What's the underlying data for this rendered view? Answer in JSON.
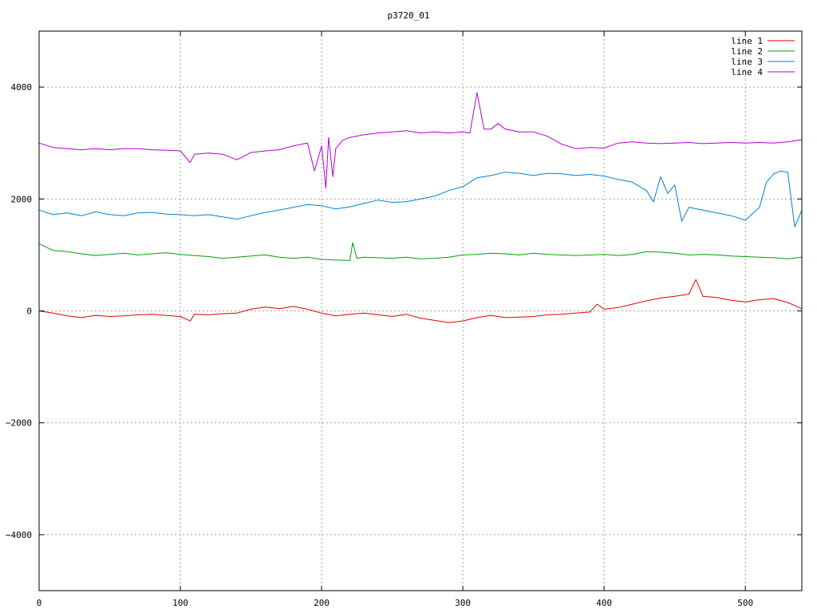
{
  "chart_data": {
    "type": "line",
    "title": "p3720_01",
    "xlabel": "",
    "ylabel": "",
    "xlim": [
      0,
      540
    ],
    "ylim": [
      -5000,
      5000
    ],
    "xticks": [
      0,
      100,
      200,
      300,
      400,
      500
    ],
    "yticks": [
      -4000,
      -2000,
      0,
      2000,
      4000
    ],
    "xtick_labels": [
      "0",
      "100",
      "200",
      "300",
      "400",
      "500"
    ],
    "ytick_labels": [
      "−4000",
      "−2000",
      "0",
      "2000",
      "4000"
    ],
    "grid": true,
    "legend_position": "top-right",
    "series": [
      {
        "name": "line 1",
        "color": "#e00000",
        "x": [
          0,
          10,
          20,
          30,
          40,
          50,
          60,
          70,
          80,
          90,
          100,
          107,
          110,
          120,
          130,
          140,
          150,
          160,
          170,
          180,
          190,
          200,
          210,
          220,
          230,
          240,
          250,
          260,
          270,
          280,
          290,
          300,
          310,
          320,
          330,
          340,
          350,
          360,
          370,
          380,
          390,
          395,
          400,
          410,
          420,
          430,
          440,
          450,
          460,
          465,
          470,
          480,
          490,
          500,
          510,
          520,
          530,
          540
        ],
        "y": [
          0,
          -40,
          -90,
          -120,
          -80,
          -100,
          -90,
          -70,
          -60,
          -80,
          -100,
          -180,
          -60,
          -70,
          -50,
          -40,
          30,
          70,
          40,
          80,
          30,
          -40,
          -90,
          -60,
          -40,
          -70,
          -100,
          -60,
          -130,
          -170,
          -210,
          -180,
          -120,
          -80,
          -120,
          -110,
          -100,
          -70,
          -60,
          -40,
          -20,
          120,
          30,
          60,
          120,
          180,
          230,
          260,
          300,
          560,
          260,
          240,
          190,
          160,
          200,
          220,
          150,
          40
        ]
      },
      {
        "name": "line 2",
        "color": "#00a000",
        "x": [
          0,
          10,
          20,
          30,
          40,
          50,
          60,
          70,
          80,
          90,
          100,
          110,
          120,
          130,
          140,
          150,
          160,
          170,
          180,
          190,
          200,
          210,
          220,
          222,
          225,
          230,
          240,
          250,
          260,
          270,
          280,
          290,
          300,
          310,
          320,
          330,
          340,
          350,
          360,
          370,
          380,
          390,
          400,
          410,
          420,
          430,
          440,
          450,
          460,
          470,
          480,
          490,
          500,
          510,
          520,
          530,
          540
        ],
        "y": [
          1200,
          1080,
          1060,
          1020,
          990,
          1010,
          1030,
          1000,
          1020,
          1040,
          1010,
          990,
          970,
          940,
          960,
          980,
          1000,
          960,
          940,
          960,
          920,
          910,
          900,
          1220,
          940,
          960,
          950,
          940,
          960,
          930,
          940,
          960,
          1000,
          1010,
          1030,
          1020,
          1000,
          1030,
          1010,
          1000,
          990,
          1000,
          1010,
          990,
          1010,
          1060,
          1050,
          1030,
          1000,
          1010,
          1000,
          980,
          970,
          960,
          950,
          930,
          960
        ]
      },
      {
        "name": "line 3",
        "color": "#0080d0",
        "x": [
          0,
          10,
          20,
          30,
          40,
          50,
          60,
          70,
          80,
          90,
          100,
          110,
          120,
          130,
          140,
          150,
          160,
          170,
          180,
          190,
          200,
          210,
          220,
          230,
          240,
          250,
          260,
          270,
          280,
          290,
          300,
          310,
          320,
          330,
          340,
          350,
          360,
          370,
          380,
          390,
          400,
          410,
          420,
          430,
          435,
          440,
          445,
          450,
          455,
          460,
          470,
          480,
          490,
          500,
          510,
          515,
          520,
          525,
          530,
          535,
          540
        ],
        "y": [
          1800,
          1720,
          1750,
          1700,
          1770,
          1720,
          1700,
          1750,
          1760,
          1730,
          1720,
          1700,
          1720,
          1680,
          1640,
          1700,
          1760,
          1800,
          1850,
          1900,
          1880,
          1820,
          1860,
          1920,
          1980,
          1940,
          1950,
          2000,
          2050,
          2150,
          2220,
          2380,
          2420,
          2480,
          2460,
          2420,
          2460,
          2450,
          2420,
          2440,
          2410,
          2350,
          2300,
          2150,
          1950,
          2400,
          2100,
          2250,
          1600,
          1850,
          1800,
          1750,
          1700,
          1620,
          1850,
          2300,
          2450,
          2500,
          2480,
          1500,
          1800
        ]
      },
      {
        "name": "line 4",
        "color": "#b000d0",
        "x": [
          0,
          10,
          20,
          30,
          40,
          50,
          60,
          70,
          80,
          90,
          100,
          107,
          110,
          120,
          130,
          140,
          150,
          160,
          170,
          180,
          190,
          195,
          200,
          203,
          205,
          208,
          210,
          215,
          220,
          230,
          240,
          250,
          260,
          270,
          280,
          290,
          300,
          305,
          310,
          315,
          320,
          325,
          330,
          340,
          350,
          360,
          370,
          380,
          390,
          400,
          410,
          420,
          430,
          440,
          450,
          460,
          470,
          480,
          490,
          500,
          510,
          520,
          530,
          540
        ],
        "y": [
          3000,
          2920,
          2900,
          2880,
          2900,
          2880,
          2900,
          2900,
          2880,
          2870,
          2860,
          2650,
          2800,
          2820,
          2800,
          2700,
          2830,
          2860,
          2880,
          2950,
          3000,
          2500,
          2950,
          2200,
          3100,
          2400,
          2900,
          3050,
          3100,
          3150,
          3180,
          3200,
          3220,
          3180,
          3200,
          3180,
          3200,
          3180,
          3900,
          3250,
          3250,
          3350,
          3250,
          3200,
          3200,
          3120,
          2980,
          2900,
          2920,
          2910,
          3000,
          3020,
          3000,
          2990,
          3000,
          3010,
          2990,
          3000,
          3010,
          3000,
          3010,
          3000,
          3020,
          3060
        ]
      }
    ]
  }
}
